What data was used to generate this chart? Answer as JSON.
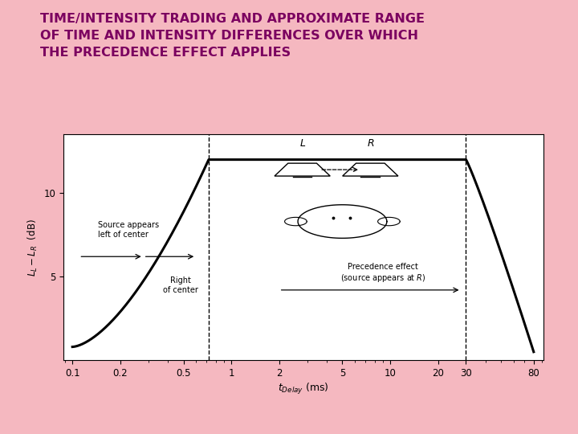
{
  "title_line1": "TIME/INTENSITY TRADING AND APPROXIMATE RANGE",
  "title_line2": "OF TIME AND INTENSITY DIFFERENCES OVER WHICH",
  "title_line3": "THE PRECEDENCE EFFECT APPLIES",
  "title_color": "#7B0060",
  "outer_bg": "#F5B8C0",
  "plot_bg": "#FFFFFF",
  "curve_color": "#000000",
  "xlabel": "t",
  "xlabel_sub": "Delay",
  "xlabel_unit": " (ms)",
  "ylabel_main": "L",
  "xtick_labels": [
    "0.1",
    "0.2",
    "0.5",
    "1",
    "2",
    "5",
    "10",
    "20",
    "30",
    "80"
  ],
  "xtick_pos": [
    0.1,
    0.2,
    0.5,
    1.0,
    2.0,
    5.0,
    10.0,
    20.0,
    30.0,
    80.0
  ],
  "ytick_labels": [
    "5",
    "10"
  ],
  "ytick_pos": [
    5,
    10
  ],
  "vline1": 0.72,
  "vline2": 30.0,
  "ylim_max": 13.5,
  "xlim_min": 0.088,
  "xlim_max": 92
}
